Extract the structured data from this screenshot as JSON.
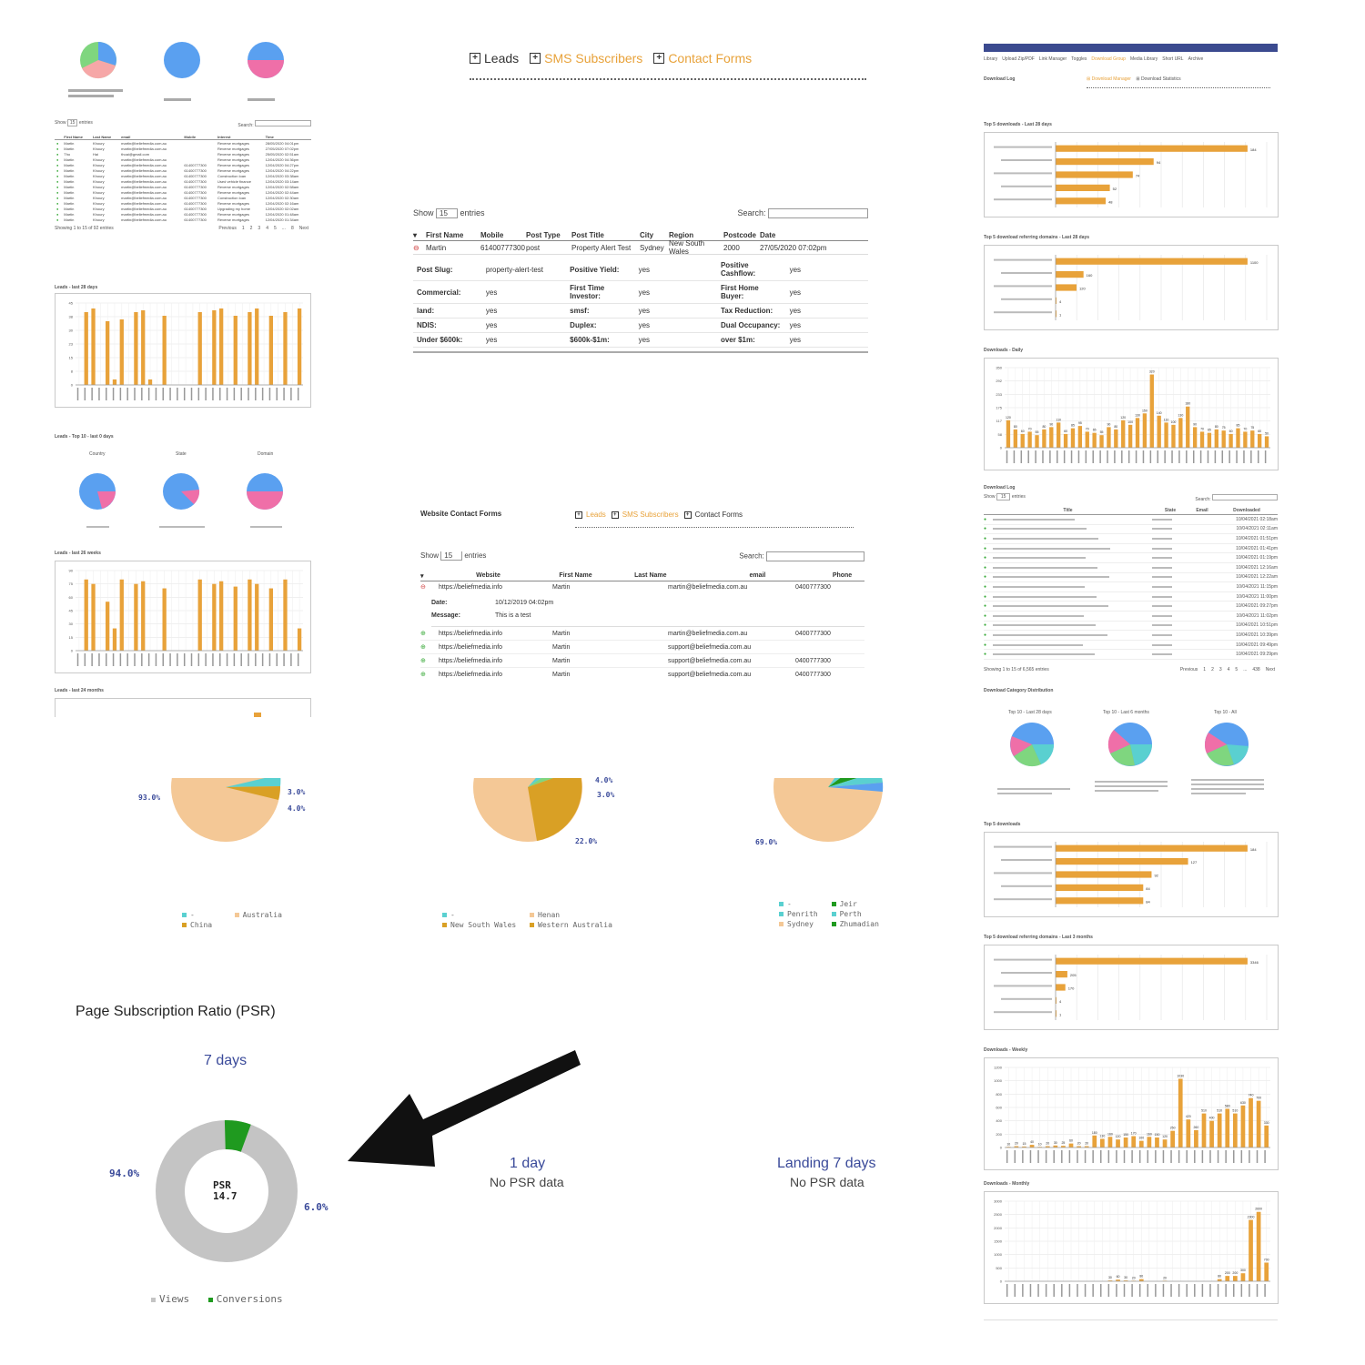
{
  "colors": {
    "bar": "#e8a23a",
    "pie_blue": "#5aa0f0",
    "pie_pink": "#ef6fa8",
    "pie_green": "#7fd67f",
    "pie_teal": "#5ad0d0",
    "peach": "#f4c896",
    "gold": "#d9a025",
    "psr_gray": "#c4c4c4",
    "psr_green": "#1f9a1f",
    "link_blue": "#3a4a9a",
    "status_green": "#3aaa3a",
    "status_red": "#d04040"
  },
  "tabs": {
    "leads": "Leads",
    "sms": "SMS Subscribers",
    "contact": "Contact Forms"
  },
  "leads_table": {
    "show_label": "Show",
    "show_value": "15",
    "entries_label": "entries",
    "search_label": "Search:",
    "columns": [
      "First Name",
      "Mobile",
      "Post Type",
      "Post Title",
      "City",
      "Region",
      "Postcode",
      "Date"
    ],
    "row": {
      "first_name": "Martin",
      "mobile": "61400777300",
      "post_type": "post",
      "post_title": "Property Alert Test",
      "city": "Sydney",
      "region": "New South Wales",
      "postcode": "2000",
      "date": "27/05/2020 07:02pm"
    },
    "details": [
      [
        {
          "label": "Post Slug:",
          "value": "property-alert-test"
        },
        {
          "label": "Positive Yield:",
          "value": "yes"
        },
        {
          "label": "Positive Cashflow:",
          "value": "yes"
        }
      ],
      [
        {
          "label": "Commercial:",
          "value": "yes"
        },
        {
          "label": "First Time Investor:",
          "value": "yes"
        },
        {
          "label": "First Home Buyer:",
          "value": "yes"
        }
      ],
      [
        {
          "label": "land:",
          "value": "yes"
        },
        {
          "label": "smsf:",
          "value": "yes"
        },
        {
          "label": "Tax Reduction:",
          "value": "yes"
        }
      ],
      [
        {
          "label": "NDIS:",
          "value": "yes"
        },
        {
          "label": "Duplex:",
          "value": "yes"
        },
        {
          "label": "Dual Occupancy:",
          "value": "yes"
        }
      ],
      [
        {
          "label": "Under $600k:",
          "value": "yes"
        },
        {
          "label": "$600k-$1m:",
          "value": "yes"
        },
        {
          "label": "over $1m:",
          "value": "yes"
        }
      ]
    ]
  },
  "contact_forms": {
    "title": "Website Contact Forms",
    "show_label": "Show",
    "show_value": "15",
    "entries_label": "entries",
    "search_label": "Search:",
    "columns": [
      "Website",
      "First Name",
      "Last Name",
      "email",
      "Phone"
    ],
    "expanded": {
      "website": "https://beliefmedia.info",
      "first_name": "Martin",
      "email": "martin@beliefmedia.com.au",
      "phone": "0400777300",
      "date_label": "Date:",
      "date_value": "10/12/2019 04:02pm",
      "message_label": "Message:",
      "message_value": "This is a test"
    },
    "rows": [
      {
        "website": "https://beliefmedia.info",
        "first_name": "Martin",
        "email": "martin@beliefmedia.com.au",
        "phone": "0400777300"
      },
      {
        "website": "https://beliefmedia.info",
        "first_name": "Martin",
        "email": "support@beliefmedia.com.au",
        "phone": ""
      },
      {
        "website": "https://beliefmedia.info",
        "first_name": "Martin",
        "email": "support@beliefmedia.com.au",
        "phone": "0400777300"
      },
      {
        "website": "https://beliefmedia.info",
        "first_name": "Martin",
        "email": "support@beliefmedia.com.au",
        "phone": "0400777300"
      }
    ]
  },
  "mini_leads": {
    "show_label": "Show",
    "show_value": "15",
    "entries_label": "entries",
    "search_label": "Search:",
    "columns": [
      "First Name",
      "Last Name",
      "email",
      "Mobile",
      "Interest",
      "Time"
    ],
    "rows": [
      [
        "Martin",
        "Khoury",
        "martin@beliefmedia.com.au",
        "",
        "Reverse mortgages",
        "28/05/2020 04:01pm"
      ],
      [
        "Martin",
        "Khoury",
        "martin@beliefmedia.com.au",
        "",
        "Reverse mortgages",
        "27/05/2020 07:02pm"
      ],
      [
        "Tho",
        "Hai",
        "thoai@gmail.com",
        "",
        "Reverse mortgages",
        "25/05/2020 02:51am"
      ],
      [
        "Martin",
        "Khoury",
        "martin@beliefmedia.com.au",
        "",
        "Reverse mortgages",
        "12/04/2020 04:36pm"
      ],
      [
        "Martin",
        "Khoury",
        "martin@beliefmedia.com.au",
        "61400777300",
        "Reverse mortgages",
        "12/04/2020 04:27pm"
      ],
      [
        "Martin",
        "Khoury",
        "martin@beliefmedia.com.au",
        "61400777300",
        "Reverse mortgages",
        "12/04/2020 04:22pm"
      ],
      [
        "Martin",
        "Khoury",
        "martin@beliefmedia.com.au",
        "61400777300",
        "Construction loan",
        "12/04/2020 03:38am"
      ],
      [
        "Martin",
        "Khoury",
        "martin@beliefmedia.com.au",
        "61400777300",
        "Used vehicle finance",
        "12/04/2020 03:14am"
      ],
      [
        "Martin",
        "Khoury",
        "martin@beliefmedia.com.au",
        "61400777300",
        "Reverse mortgages",
        "12/04/2020 02:58am"
      ],
      [
        "Martin",
        "Khoury",
        "martin@beliefmedia.com.au",
        "61400777300",
        "Reverse mortgages",
        "12/04/2020 02:44am"
      ],
      [
        "Martin",
        "Khoury",
        "martin@beliefmedia.com.au",
        "61400777300",
        "Construction loan",
        "12/04/2020 02:30am"
      ],
      [
        "Martin",
        "Khoury",
        "martin@beliefmedia.com.au",
        "61400777300",
        "Reverse mortgages",
        "12/04/2020 02:16am"
      ],
      [
        "Martin",
        "Khoury",
        "martin@beliefmedia.com.au",
        "61400777300",
        "Upgrading my home",
        "12/04/2020 02:02am"
      ],
      [
        "Martin",
        "Khoury",
        "martin@beliefmedia.com.au",
        "61400777300",
        "Reverse mortgages",
        "12/04/2020 01:48am"
      ],
      [
        "Martin",
        "Khoury",
        "martin@beliefmedia.com.au",
        "61400777300",
        "Reverse mortgages",
        "12/04/2020 01:34am"
      ]
    ],
    "footer": "Showing 1 to 15 of 92 entries",
    "pager": [
      "Previous",
      "1",
      "2",
      "3",
      "4",
      "5",
      "...",
      "8",
      "Next"
    ]
  },
  "left_headings": {
    "leads_28": "Leads - last 28 days",
    "top10": "Leads - Top 10 - last 0 days",
    "top10_cols": [
      "Country",
      "State",
      "Domain"
    ],
    "leads_26w": "Leads - last 26 weeks",
    "leads_24m": "Leads - last 24 months"
  },
  "right_panel": {
    "nav_items": [
      "Library",
      "Upload Zip/PDF",
      "Link Manager",
      "Toggles",
      "Download Group",
      "Media Library",
      "Short URL",
      "Archive"
    ],
    "download_log_label": "Download Log",
    "sub_tabs": [
      "Download Manager",
      "Download Statistics"
    ],
    "headings": {
      "top5_28": "Top 5 downloads - Last 28 days",
      "top5_ref_28": "Top 5 download referring domains - Last 28 days",
      "daily": "Downloads - Daily",
      "log": "Download Log",
      "category": "Download Category Distribution",
      "cat_cols": [
        "Top 10 - Last 28 days",
        "Top 10 - Last 6 months",
        "Top 10 - All"
      ],
      "top5": "Top 5 downloads",
      "top5_ref_3m": "Top 5 download referring domains - Last 3 months",
      "weekly": "Downloads - Weekly",
      "monthly": "Downloads - Monthly"
    },
    "log_show": "Show",
    "log_show_value": "15",
    "log_entries": "entries",
    "log_search": "Search:",
    "log_cols": [
      "Title",
      "State",
      "Email",
      "Downloaded"
    ],
    "log_footer": "Showing 1 to 15 of 6,565 entries",
    "log_pager": [
      "Previous",
      "1",
      "2",
      "3",
      "4",
      "5",
      "...",
      "438",
      "Next"
    ],
    "log_times": [
      "10/04/2021 02:18am",
      "10/04/2021 02:11am",
      "10/04/2021 01:51pm",
      "10/04/2021 01:41pm",
      "10/04/2021 01:19pm",
      "10/04/2021 12:16am",
      "10/04/2021 12:22am",
      "10/04/2021 11:15pm",
      "10/04/2021 11:00pm",
      "10/04/2021 09:27pm",
      "10/04/2021 11:02pm",
      "10/04/2021 10:51pm",
      "10/04/2021 10:39pm",
      "10/04/2021 09:49pm",
      "10/04/2021 09:29pm"
    ]
  },
  "pie_labels": {
    "p1": {
      "a": "93.0%",
      "b": "3.0%",
      "c": "4.0%"
    },
    "p2": {
      "a": "4.0%",
      "b": "3.0%",
      "c": "22.0%"
    },
    "p3": {
      "a": "69.0%"
    },
    "legend1": [
      {
        "name": "-",
        "color": "#5ad0d0"
      },
      {
        "name": "Australia",
        "color": "#f4c896"
      },
      {
        "name": "China",
        "color": "#d9a025"
      }
    ],
    "legend2": [
      {
        "name": "-",
        "color": "#5ad0d0"
      },
      {
        "name": "Henan",
        "color": "#f4c896"
      },
      {
        "name": "New South Wales",
        "color": "#d9a025"
      },
      {
        "name": "Western Australia",
        "color": "#d9a025"
      }
    ],
    "legend3": [
      {
        "name": "-",
        "color": "#5ad0d0"
      },
      {
        "name": "Jeir",
        "color": "#1f9a1f"
      },
      {
        "name": "Penrith",
        "color": "#5ad0d0"
      },
      {
        "name": "Perth",
        "color": "#5ad0d0"
      },
      {
        "name": "Sydney",
        "color": "#f4c896"
      },
      {
        "name": "Zhumadian",
        "color": "#1f9a1f"
      }
    ]
  },
  "psr": {
    "title": "Page Subscription Ratio (PSR)",
    "period": "7 days",
    "center_label": "PSR",
    "center_value": "14.7",
    "views_pct": "94.0%",
    "conversions_pct": "6.0%",
    "views_fraction": 0.94,
    "legend_views": "Views",
    "legend_conversions": "Conversions",
    "one_day_title": "1 day",
    "one_day_sub": "No PSR data",
    "landing_title": "Landing 7 days",
    "landing_sub": "No PSR data"
  },
  "chart_data": [
    {
      "type": "bar",
      "name": "leads-28-days",
      "ylim": [
        0,
        45
      ],
      "values": [
        0,
        40,
        42,
        0,
        35,
        3,
        36,
        0,
        40,
        41,
        3,
        0,
        38,
        0,
        0,
        0,
        0,
        40,
        0,
        41,
        42,
        0,
        38,
        0,
        40,
        42,
        0,
        38,
        0,
        40,
        0,
        42
      ]
    },
    {
      "type": "bar",
      "name": "leads-26-weeks",
      "ylim": [
        0,
        90
      ],
      "values": [
        0,
        80,
        75,
        0,
        55,
        25,
        80,
        0,
        75,
        78,
        0,
        0,
        70,
        0,
        0,
        0,
        0,
        80,
        0,
        75,
        78,
        0,
        72,
        0,
        80,
        75,
        0,
        70,
        0,
        80,
        0,
        25
      ]
    },
    {
      "type": "bar",
      "name": "top5-downloads-28-days",
      "values": [
        184,
        94,
        74,
        52,
        48
      ]
    },
    {
      "type": "bar",
      "name": "top5-referring-28-days",
      "values": [
        1100,
        160,
        120,
        4,
        1
      ]
    },
    {
      "type": "bar",
      "name": "downloads-daily",
      "ylim": [
        0,
        350
      ],
      "values": [
        120,
        80,
        60,
        70,
        55,
        80,
        90,
        110,
        60,
        85,
        95,
        70,
        65,
        55,
        90,
        80,
        120,
        100,
        130,
        150,
        320,
        140,
        110,
        100,
        130,
        180,
        90,
        70,
        65,
        80,
        75,
        60,
        85,
        70,
        75,
        60,
        50
      ]
    },
    {
      "type": "bar",
      "name": "top5-downloads",
      "values": [
        184,
        127,
        92,
        84,
        84
      ]
    },
    {
      "type": "bar",
      "name": "top5-referring-3-months",
      "values": [
        3346,
        205,
        170,
        4,
        1
      ]
    },
    {
      "type": "bar",
      "name": "downloads-weekly",
      "ylim": [
        0,
        1200
      ],
      "values": [
        10,
        20,
        15,
        40,
        10,
        20,
        30,
        25,
        60,
        20,
        20,
        180,
        130,
        160,
        120,
        150,
        170,
        100,
        160,
        150,
        120,
        250,
        1030,
        420,
        260,
        510,
        400,
        510,
        580,
        510,
        630,
        740,
        700,
        330
      ]
    },
    {
      "type": "bar",
      "name": "downloads-monthly",
      "ylim": [
        0,
        3000
      ],
      "values": [
        0,
        0,
        0,
        0,
        0,
        0,
        0,
        0,
        0,
        0,
        0,
        0,
        0,
        30,
        60,
        30,
        20,
        80,
        0,
        0,
        20,
        0,
        0,
        0,
        0,
        0,
        0,
        80,
        200,
        200,
        300,
        2300,
        2600,
        700
      ]
    }
  ]
}
